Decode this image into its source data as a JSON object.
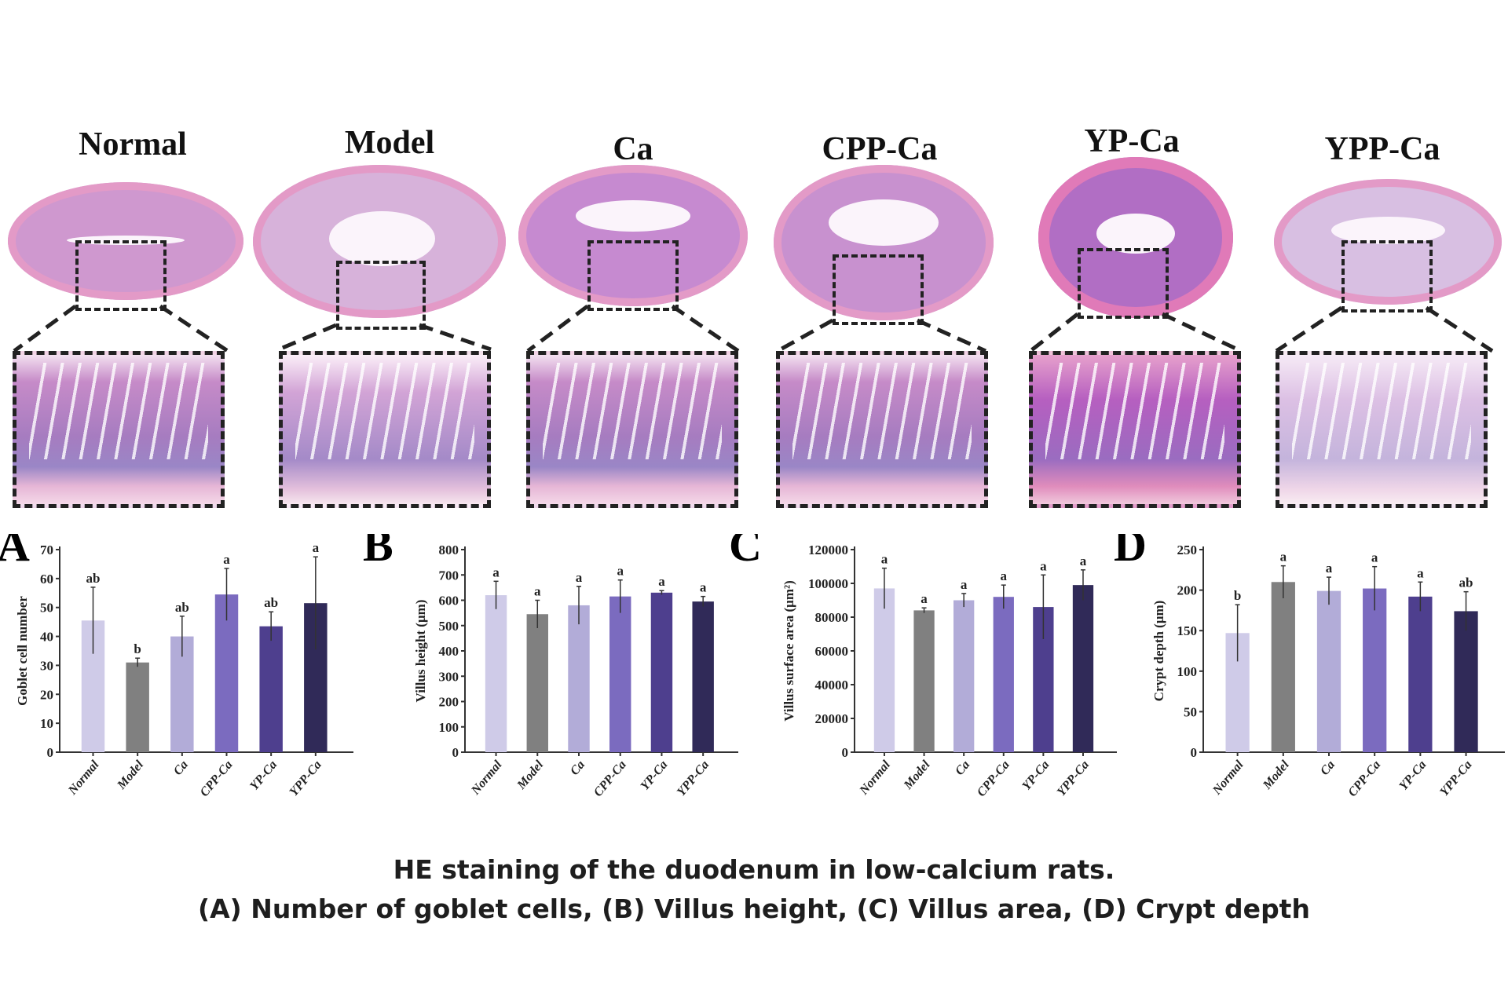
{
  "groups": [
    "Normal",
    "Model",
    "Ca",
    "CPP-Ca",
    "YP-Ca",
    "YPP-Ca"
  ],
  "tissue_colors": {
    "stain": "#c98ac9",
    "lumen": "#fbf4fb"
  },
  "chart_data": [
    {
      "type": "bar",
      "panel": "A",
      "ylabel": "Goblet cell number",
      "ylim": [
        0,
        70
      ],
      "yticks": [
        0,
        10,
        20,
        30,
        40,
        50,
        60,
        70
      ],
      "categories": [
        "Normal",
        "Model",
        "Ca",
        "CPP-Ca",
        "YP-Ca",
        "YPP-Ca"
      ],
      "values": [
        45.5,
        31,
        40,
        54.5,
        43.5,
        51.5
      ],
      "errors": [
        11.5,
        1.5,
        7,
        9,
        5,
        16
      ],
      "labels": [
        "ab",
        "b",
        "ab",
        "a",
        "ab",
        "a"
      ]
    },
    {
      "type": "bar",
      "panel": "B",
      "ylabel": "Villus height (μm)",
      "ylim": [
        0,
        800
      ],
      "yticks": [
        0,
        100,
        200,
        300,
        400,
        500,
        600,
        700,
        800
      ],
      "categories": [
        "Normal",
        "Model",
        "Ca",
        "CPP-Ca",
        "YP-Ca",
        "YPP-Ca"
      ],
      "values": [
        620,
        545,
        580,
        615,
        630,
        595
      ],
      "errors": [
        55,
        55,
        75,
        65,
        8,
        20
      ],
      "labels": [
        "a",
        "a",
        "a",
        "a",
        "a",
        "a"
      ]
    },
    {
      "type": "bar",
      "panel": "C",
      "ylabel": "Villus surface area (μm²)",
      "ylim": [
        0,
        120000
      ],
      "yticks": [
        0,
        20000,
        40000,
        60000,
        80000,
        100000,
        120000
      ],
      "categories": [
        "Normal",
        "Model",
        "Ca",
        "CPP-Ca",
        "YP-Ca",
        "YPP-Ca"
      ],
      "values": [
        97000,
        84000,
        90000,
        92000,
        86000,
        99000
      ],
      "errors": [
        12000,
        1500,
        4000,
        7000,
        19000,
        9000
      ],
      "labels": [
        "a",
        "a",
        "a",
        "a",
        "a",
        "a"
      ]
    },
    {
      "type": "bar",
      "panel": "D",
      "ylabel": "Crypt depth (μm)",
      "ylim": [
        0,
        250
      ],
      "yticks": [
        0,
        50,
        100,
        150,
        200,
        250
      ],
      "categories": [
        "Normal",
        "Model",
        "Ca",
        "CPP-Ca",
        "YP-Ca",
        "YPP-Ca"
      ],
      "values": [
        147,
        210,
        199,
        202,
        192,
        174
      ],
      "errors": [
        35,
        20,
        17,
        27,
        18,
        24
      ],
      "labels": [
        "b",
        "a",
        "a",
        "a",
        "a",
        "ab"
      ]
    }
  ],
  "bar_colors": [
    "#cfcbe8",
    "#808080",
    "#b2acd8",
    "#7b6bbf",
    "#4e3f8e",
    "#302a58"
  ],
  "caption": {
    "line1": "HE staining of the duodenum in low-calcium rats.",
    "line2": "(A) Number of goblet cells, (B) Villus height, (C) Villus area, (D) Crypt depth"
  }
}
